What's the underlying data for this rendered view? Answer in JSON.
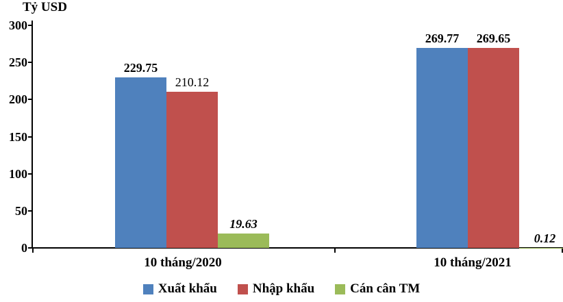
{
  "chart_data": {
    "type": "bar",
    "title": "Tỷ USD",
    "categories": [
      "10 tháng/2020",
      "10 tháng/2021"
    ],
    "series": [
      {
        "name": "Xuất khẩu",
        "color": "#4F81BD",
        "values": [
          229.75,
          269.77
        ],
        "labels": [
          "229.75",
          "269.77"
        ],
        "label_formats": [
          "bold",
          "bold"
        ]
      },
      {
        "name": "Nhập khẩu",
        "color": "#C0504D",
        "values": [
          210.12,
          269.65
        ],
        "labels": [
          "210.12",
          "269.65"
        ],
        "label_formats": [
          "normal",
          "bold"
        ]
      },
      {
        "name": "Cán cân TM",
        "color": "#9BBB59",
        "values": [
          19.63,
          0.12
        ],
        "labels": [
          "19.63",
          "0.12"
        ],
        "label_formats": [
          "bold-italic",
          "bold-italic"
        ]
      }
    ],
    "ylabel": "Tỷ USD",
    "ylim": [
      0,
      300
    ],
    "yticks": [
      0,
      50,
      100,
      150,
      200,
      250,
      300
    ],
    "grid": false,
    "legend_position": "bottom"
  }
}
